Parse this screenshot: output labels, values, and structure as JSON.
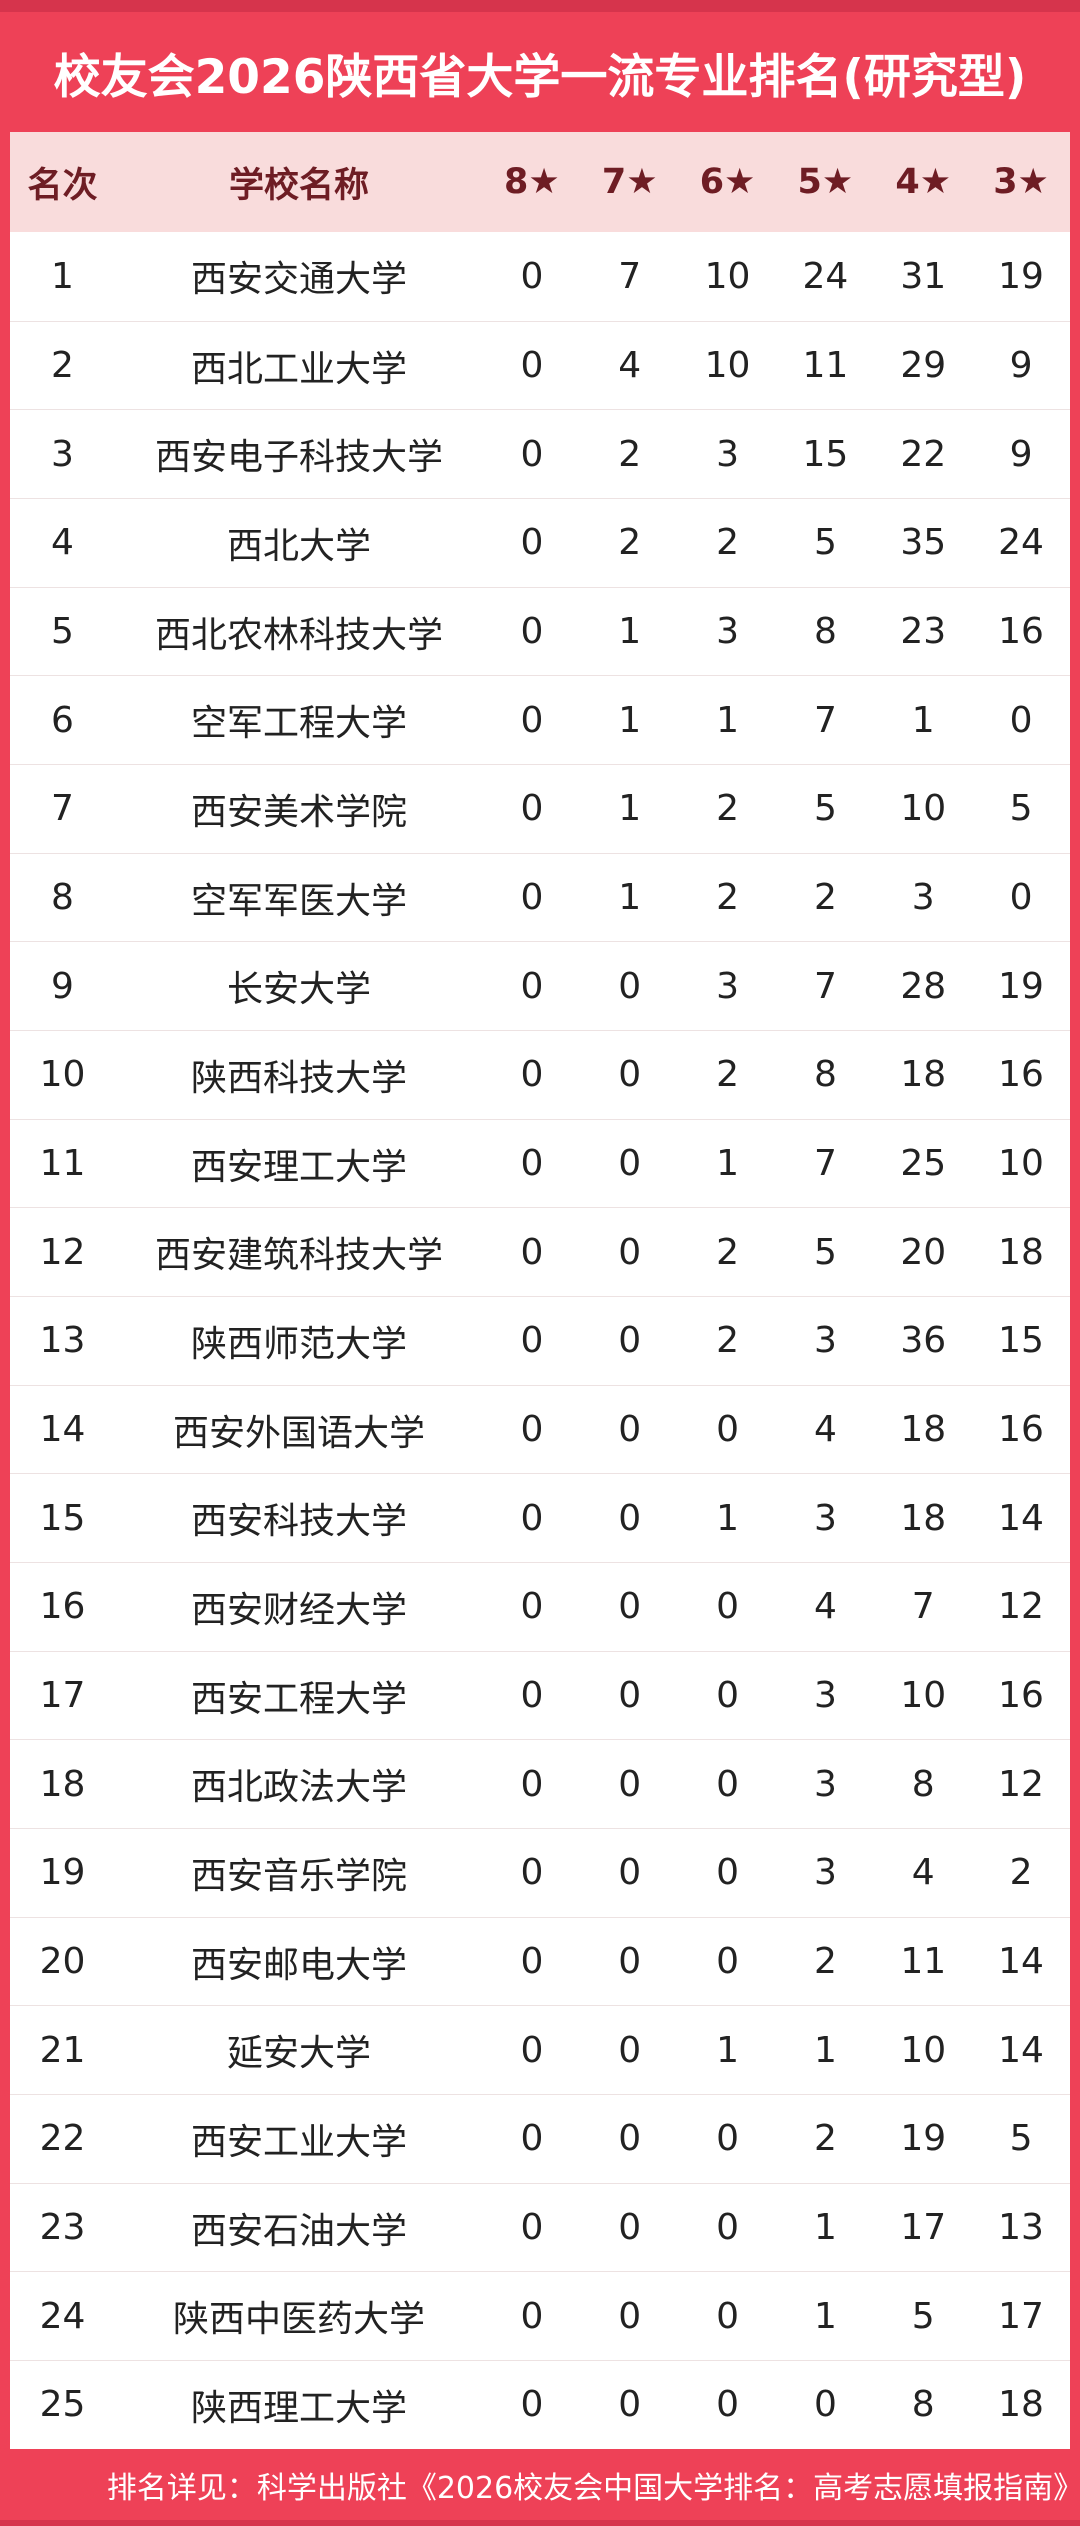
{
  "chart_data": {
    "type": "table",
    "title": "校友会2026陕西省大学一流专业排名(研究型)",
    "columns": [
      "名次",
      "学校名称",
      "8★",
      "7★",
      "6★",
      "5★",
      "4★",
      "3★"
    ],
    "rows": [
      {
        "rank": "1",
        "school": "西安交通大学",
        "stars": [
          "0",
          "7",
          "10",
          "24",
          "31",
          "19"
        ]
      },
      {
        "rank": "2",
        "school": "西北工业大学",
        "stars": [
          "0",
          "4",
          "10",
          "11",
          "29",
          "9"
        ]
      },
      {
        "rank": "3",
        "school": "西安电子科技大学",
        "stars": [
          "0",
          "2",
          "3",
          "15",
          "22",
          "9"
        ]
      },
      {
        "rank": "4",
        "school": "西北大学",
        "stars": [
          "0",
          "2",
          "2",
          "5",
          "35",
          "24"
        ]
      },
      {
        "rank": "5",
        "school": "西北农林科技大学",
        "stars": [
          "0",
          "1",
          "3",
          "8",
          "23",
          "16"
        ]
      },
      {
        "rank": "6",
        "school": "空军工程大学",
        "stars": [
          "0",
          "1",
          "1",
          "7",
          "1",
          "0"
        ]
      },
      {
        "rank": "7",
        "school": "西安美术学院",
        "stars": [
          "0",
          "1",
          "2",
          "5",
          "10",
          "5"
        ]
      },
      {
        "rank": "8",
        "school": "空军军医大学",
        "stars": [
          "0",
          "1",
          "2",
          "2",
          "3",
          "0"
        ]
      },
      {
        "rank": "9",
        "school": "长安大学",
        "stars": [
          "0",
          "0",
          "3",
          "7",
          "28",
          "19"
        ]
      },
      {
        "rank": "10",
        "school": "陕西科技大学",
        "stars": [
          "0",
          "0",
          "2",
          "8",
          "18",
          "16"
        ]
      },
      {
        "rank": "11",
        "school": "西安理工大学",
        "stars": [
          "0",
          "0",
          "1",
          "7",
          "25",
          "10"
        ]
      },
      {
        "rank": "12",
        "school": "西安建筑科技大学",
        "stars": [
          "0",
          "0",
          "2",
          "5",
          "20",
          "18"
        ]
      },
      {
        "rank": "13",
        "school": "陕西师范大学",
        "stars": [
          "0",
          "0",
          "2",
          "3",
          "36",
          "15"
        ]
      },
      {
        "rank": "14",
        "school": "西安外国语大学",
        "stars": [
          "0",
          "0",
          "0",
          "4",
          "18",
          "16"
        ]
      },
      {
        "rank": "15",
        "school": "西安科技大学",
        "stars": [
          "0",
          "0",
          "1",
          "3",
          "18",
          "14"
        ]
      },
      {
        "rank": "16",
        "school": "西安财经大学",
        "stars": [
          "0",
          "0",
          "0",
          "4",
          "7",
          "12"
        ]
      },
      {
        "rank": "17",
        "school": "西安工程大学",
        "stars": [
          "0",
          "0",
          "0",
          "3",
          "10",
          "16"
        ]
      },
      {
        "rank": "18",
        "school": "西北政法大学",
        "stars": [
          "0",
          "0",
          "0",
          "3",
          "8",
          "12"
        ]
      },
      {
        "rank": "19",
        "school": "西安音乐学院",
        "stars": [
          "0",
          "0",
          "0",
          "3",
          "4",
          "2"
        ]
      },
      {
        "rank": "20",
        "school": "西安邮电大学",
        "stars": [
          "0",
          "0",
          "0",
          "2",
          "11",
          "14"
        ]
      },
      {
        "rank": "21",
        "school": "延安大学",
        "stars": [
          "0",
          "0",
          "1",
          "1",
          "10",
          "14"
        ]
      },
      {
        "rank": "22",
        "school": "西安工业大学",
        "stars": [
          "0",
          "0",
          "0",
          "2",
          "19",
          "5"
        ]
      },
      {
        "rank": "23",
        "school": "西安石油大学",
        "stars": [
          "0",
          "0",
          "0",
          "1",
          "17",
          "13"
        ]
      },
      {
        "rank": "24",
        "school": "陕西中医药大学",
        "stars": [
          "0",
          "0",
          "0",
          "1",
          "5",
          "17"
        ]
      },
      {
        "rank": "25",
        "school": "陕西理工大学",
        "stars": [
          "0",
          "0",
          "0",
          "0",
          "8",
          "18"
        ]
      }
    ],
    "footnote": "排名详见：科学出版社《2026校友会中国大学排名：高考志愿填报指南》",
    "layout": {
      "legend": "none",
      "grid": "horizontal-row-separators",
      "header_position": "top"
    }
  },
  "colors": {
    "accent_red": "#ee4157",
    "accent_red_dark": "#d6344c",
    "header_pink": "#f9dcdc",
    "header_text": "#6e1d24",
    "body_text": "#222222",
    "row_separator": "#ede2e2",
    "title_text": "#ffffff",
    "footer_text": "#ffffff"
  }
}
